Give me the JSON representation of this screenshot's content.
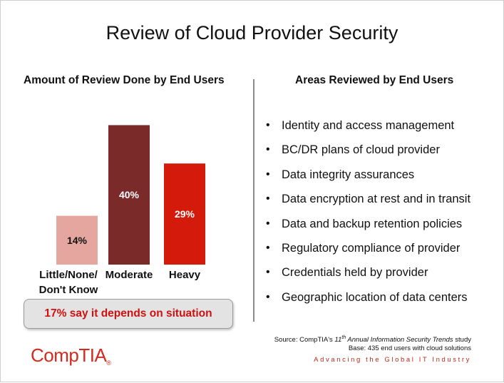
{
  "title": "Review of Cloud Provider Security",
  "left": {
    "subtitle": "Amount of Review Done by End Users"
  },
  "right": {
    "subtitle": "Areas Reviewed by End Users",
    "bullet_char": "•",
    "items": [
      "Identity and access management",
      "BC/DR plans of cloud provider",
      "Data integrity assurances",
      "Data encryption at rest and in transit",
      "Data and backup retention policies",
      "Regulatory compliance of provider",
      "Credentials held by provider",
      "Geographic location of data centers"
    ]
  },
  "callout": "17% say it depends on situation",
  "source": {
    "line1_prefix": "Source: CompTIA's ",
    "line1_ordinal": "11",
    "line1_sup": "th",
    "line1_title": " Annual Information Security Trends",
    "line1_suffix": " study",
    "line2": "Base: 435 end users with cloud solutions"
  },
  "tagline": "Advancing the Global IT Industry",
  "logo": {
    "text": "CompTIA",
    "mark": "®"
  },
  "chart_data": {
    "type": "bar",
    "categories": [
      [
        "Little/None/",
        "Don't Know"
      ],
      [
        "Moderate"
      ],
      [
        "Heavy"
      ]
    ],
    "values": [
      14,
      40,
      29
    ],
    "data_labels": [
      "14%",
      "40%",
      "29%"
    ],
    "colors": [
      "#e6a6a0",
      "#7b2a2a",
      "#d41a0a"
    ],
    "label_colors": [
      "#111111",
      "#ffffff",
      "#ffffff"
    ],
    "ylim": [
      0,
      45
    ],
    "grid": false,
    "legend": "none"
  }
}
